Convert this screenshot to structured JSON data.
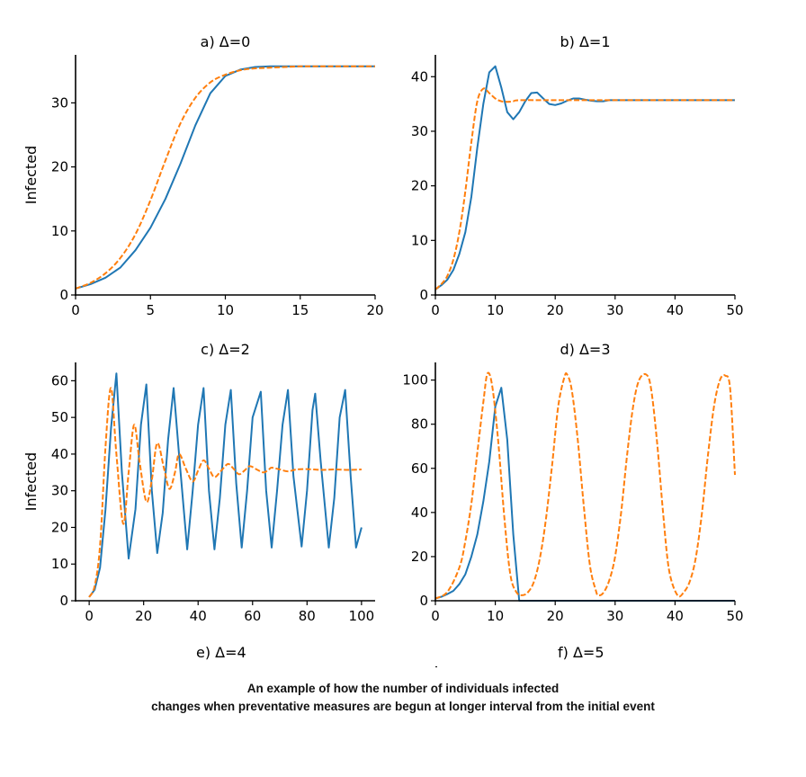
{
  "colors": {
    "series_a": "#1f77b4",
    "series_b": "#ff7f0e",
    "axis": "#000000"
  },
  "caption": {
    "line1": "An example of how the number of individuals infected",
    "line2": "changes when preventative measures are begun at longer interval from the initial event"
  },
  "extra_labels": {
    "e": "e) Δ=4",
    "f": "f) Δ=5"
  },
  "chart_data": [
    {
      "id": "a",
      "type": "line",
      "title": "a) Δ=0",
      "xlabel": "",
      "ylabel": "Infected",
      "xlim": [
        0,
        20
      ],
      "ylim": [
        0,
        37.5
      ],
      "xticks": [
        0,
        5,
        10,
        15,
        20
      ],
      "yticks": [
        0,
        10,
        20,
        30
      ],
      "grid": false,
      "series": [
        {
          "name": "solid",
          "style": "solid",
          "x": [
            0,
            1,
            2,
            3,
            4,
            5,
            6,
            7,
            8,
            9,
            10,
            11,
            12,
            13,
            14,
            15,
            16,
            17,
            18,
            19,
            20
          ],
          "values": [
            1,
            1.7,
            2.7,
            4.3,
            7,
            10.5,
            15,
            20.5,
            26.5,
            31.5,
            34.2,
            35.2,
            35.6,
            35.7,
            35.7,
            35.7,
            35.7,
            35.7,
            35.7,
            35.7,
            35.7
          ]
        },
        {
          "name": "dashed",
          "style": "dashed",
          "x": [
            0,
            1,
            2,
            3,
            4,
            5,
            6,
            7,
            8,
            9,
            10,
            11,
            12,
            13,
            14,
            15,
            16,
            17,
            18,
            19,
            20
          ],
          "values": [
            1,
            1.9,
            3.4,
            5.8,
            9.5,
            14.8,
            21,
            26.8,
            30.8,
            33.2,
            34.4,
            35.1,
            35.4,
            35.5,
            35.6,
            35.7,
            35.7,
            35.7,
            35.7,
            35.7,
            35.7
          ]
        }
      ]
    },
    {
      "id": "b",
      "type": "line",
      "title": "b) Δ=1",
      "xlabel": "",
      "ylabel": "",
      "xlim": [
        0,
        50
      ],
      "ylim": [
        0,
        44
      ],
      "xticks": [
        0,
        10,
        20,
        30,
        40,
        50
      ],
      "yticks": [
        0,
        10,
        20,
        30,
        40
      ],
      "grid": false,
      "series": [
        {
          "name": "solid",
          "style": "solid",
          "x": [
            0,
            1,
            2,
            3,
            4,
            5,
            6,
            7,
            8,
            9,
            10,
            11,
            12,
            13,
            14,
            15,
            16,
            17,
            18,
            19,
            20,
            21,
            22,
            23,
            24,
            25,
            26,
            27,
            28,
            29,
            30,
            35,
            40,
            45,
            50
          ],
          "values": [
            1,
            1.8,
            2.8,
            4.6,
            7.5,
            11.5,
            18,
            27,
            35,
            40.8,
            41.9,
            38,
            33.5,
            32.2,
            33.5,
            35.5,
            37,
            37.1,
            36,
            35,
            34.8,
            35.1,
            35.6,
            36,
            36,
            35.8,
            35.6,
            35.5,
            35.5,
            35.7,
            35.7,
            35.7,
            35.7,
            35.7,
            35.7
          ]
        },
        {
          "name": "dashed",
          "style": "dashed",
          "x": [
            0,
            1,
            2,
            3,
            4,
            5,
            6,
            7,
            8,
            9,
            10,
            11,
            12,
            13,
            14,
            20,
            30,
            40,
            50
          ],
          "values": [
            1,
            2,
            3.5,
            6.5,
            11.5,
            19,
            28,
            35.5,
            37.8,
            37,
            36,
            35.5,
            35.4,
            35.5,
            35.7,
            35.7,
            35.7,
            35.7,
            35.7
          ]
        }
      ]
    },
    {
      "id": "c",
      "type": "line",
      "title": "c) Δ=2",
      "xlabel": "",
      "ylabel": "Infected",
      "xlim": [
        -5,
        105
      ],
      "ylim": [
        0,
        65
      ],
      "xticks": [
        0,
        20,
        40,
        60,
        80,
        100
      ],
      "yticks": [
        0,
        10,
        20,
        30,
        40,
        50,
        60
      ],
      "grid": false,
      "series": [
        {
          "name": "solid",
          "style": "solid",
          "x": [
            0,
            2,
            4,
            6,
            8,
            10,
            12,
            14.5,
            17,
            19,
            21,
            23,
            25,
            27,
            29,
            31,
            33,
            36,
            38,
            40,
            42,
            44,
            46,
            48,
            50,
            52,
            54,
            56,
            58,
            60,
            63,
            65,
            67,
            69,
            71,
            73,
            75,
            78,
            80,
            82,
            83,
            85,
            88,
            90,
            92,
            94,
            96,
            98,
            100
          ],
          "values": [
            1,
            3,
            9,
            25,
            47,
            62,
            35,
            11.5,
            25,
            48,
            59,
            30,
            13,
            24,
            44,
            58,
            40,
            14,
            30,
            48,
            58,
            30,
            14,
            28,
            48,
            57.5,
            32,
            14.5,
            30,
            50,
            57,
            30,
            14.5,
            30,
            48,
            57.5,
            34,
            14.8,
            30,
            52,
            56.5,
            38,
            14.5,
            28,
            50,
            57.5,
            34,
            14.5,
            20
          ]
        },
        {
          "name": "dashed",
          "style": "dashed",
          "x": [
            0,
            2,
            4,
            6,
            8,
            10,
            12.5,
            14.5,
            16.5,
            18.5,
            21,
            23,
            25,
            27.5,
            29.5,
            31.5,
            33,
            35.5,
            38,
            40,
            42,
            44,
            46,
            48.5,
            51,
            53,
            55,
            57,
            59,
            61.5,
            64,
            66,
            67,
            70,
            73,
            76,
            80,
            85,
            90,
            95,
            100
          ],
          "values": [
            1,
            4,
            15,
            42,
            58,
            40,
            21,
            35,
            48,
            38,
            27,
            33,
            43,
            36,
            30.5,
            35,
            40,
            36,
            32.5,
            35.5,
            38.3,
            36,
            33.7,
            35.5,
            37.3,
            36,
            34.5,
            35.5,
            36.7,
            35.8,
            35,
            35.8,
            36.3,
            35.8,
            35.3,
            35.8,
            35.9,
            35.7,
            35.8,
            35.7,
            35.8
          ]
        }
      ]
    },
    {
      "id": "d",
      "type": "line",
      "title": "d) Δ=3",
      "xlabel": "",
      "ylabel": "",
      "xlim": [
        0,
        50
      ],
      "ylim": [
        0,
        108
      ],
      "xticks": [
        0,
        10,
        20,
        30,
        40,
        50
      ],
      "yticks": [
        0,
        20,
        40,
        60,
        80,
        100
      ],
      "grid": false,
      "series": [
        {
          "name": "solid",
          "style": "solid",
          "x": [
            0,
            1,
            2,
            3,
            4,
            5,
            6,
            7,
            8,
            9,
            10,
            11,
            12,
            13,
            14,
            20,
            30,
            40,
            50
          ],
          "values": [
            1,
            1.8,
            3,
            4.5,
            7.5,
            12,
            20,
            30,
            45,
            63,
            88,
            96.5,
            73,
            30,
            0,
            0,
            0,
            0,
            0
          ]
        },
        {
          "name": "dashed",
          "style": "dashed",
          "x": [
            0,
            2,
            4,
            5,
            6,
            7,
            8,
            8.7,
            9.5,
            10.5,
            11.5,
            12.5,
            13.5,
            14.5,
            15.5,
            16.5,
            17.5,
            18.5,
            19.5,
            20.5,
            21.5,
            22,
            22.8,
            23.8,
            24.8,
            25.8,
            26.8,
            27.2,
            28,
            29,
            30,
            31,
            32,
            33,
            34,
            35.2,
            36,
            37,
            38,
            39,
            40.4,
            41.5,
            42.5,
            43.5,
            44.5,
            45.5,
            46.5,
            47.5,
            48.4,
            49.2,
            50
          ],
          "values": [
            1,
            4,
            15,
            27,
            44,
            67,
            90,
            103,
            97,
            72,
            38,
            12,
            4,
            2.5,
            4,
            9,
            20,
            38,
            62,
            88,
            101,
            102.5,
            95,
            72,
            42,
            16,
            4.5,
            2.5,
            3.5,
            9,
            20,
            40,
            66,
            88,
            100,
            102.5,
            96,
            72,
            40,
            14,
            2.5,
            4,
            9,
            20,
            40,
            66,
            88,
            100,
            102,
            96,
            57
          ]
        }
      ]
    }
  ]
}
